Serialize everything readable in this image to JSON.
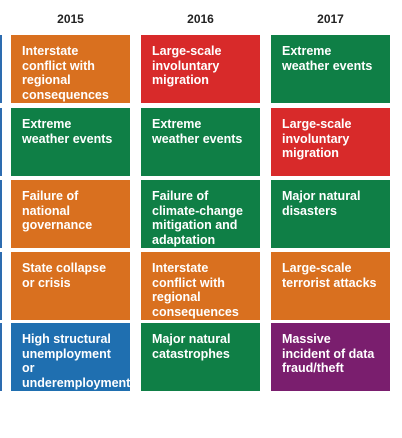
{
  "colors": {
    "orange": "#d9701f",
    "red": "#d82a2a",
    "green": "#0f7f46",
    "blue": "#1f6fb0",
    "purple": "#7a1e6e"
  },
  "chart_data": {
    "type": "table",
    "columns": [
      "2015",
      "2016",
      "2017"
    ],
    "rows": [
      [
        {
          "text": "Interstate conflict with regional consequences",
          "color": "orange"
        },
        {
          "text": "Large-scale involuntary migration",
          "color": "red"
        },
        {
          "text": "Extreme weather events",
          "color": "green"
        }
      ],
      [
        {
          "text": "Extreme weather events",
          "color": "green"
        },
        {
          "text": "Extreme weather events",
          "color": "green"
        },
        {
          "text": "Large-scale involuntary migration",
          "color": "red"
        }
      ],
      [
        {
          "text": "Failure of national governance",
          "color": "orange"
        },
        {
          "text": "Failure of climate-change mitigation and adaptation",
          "color": "green"
        },
        {
          "text": "Major natural disasters",
          "color": "green"
        }
      ],
      [
        {
          "text": "State collapse or crisis",
          "color": "orange"
        },
        {
          "text": "Interstate conflict with regional consequences",
          "color": "orange"
        },
        {
          "text": "Large-scale terrorist attacks",
          "color": "orange"
        }
      ],
      [
        {
          "text": "High structural unemployment or underemployment",
          "color": "blue"
        },
        {
          "text": "Major natural catastrophes",
          "color": "green"
        },
        {
          "text": "Massive incident of data fraud/theft",
          "color": "purple"
        }
      ]
    ]
  }
}
